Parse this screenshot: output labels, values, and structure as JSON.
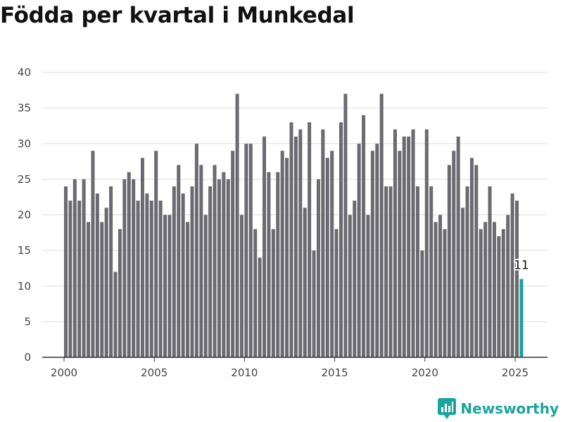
{
  "chart_data": {
    "type": "bar",
    "title": "Födda per kvartal i Munkedal",
    "xlabel": "",
    "ylabel": "",
    "ylim": [
      0,
      40
    ],
    "yticks": [
      0,
      5,
      10,
      15,
      20,
      25,
      30,
      35,
      40
    ],
    "xticks": [
      "2000",
      "2005",
      "2010",
      "2015",
      "2020",
      "2025"
    ],
    "grid": true,
    "bar_color": "#6b6a70",
    "highlight_color": "#17a39b",
    "highlight_label": "11",
    "first_year": 2000,
    "values": [
      24,
      22,
      25,
      22,
      25,
      19,
      29,
      23,
      19,
      21,
      24,
      12,
      18,
      25,
      26,
      25,
      22,
      28,
      23,
      22,
      29,
      22,
      20,
      20,
      24,
      27,
      23,
      19,
      24,
      30,
      27,
      20,
      24,
      27,
      25,
      26,
      25,
      29,
      37,
      20,
      30,
      30,
      18,
      14,
      31,
      26,
      18,
      26,
      29,
      28,
      33,
      31,
      32,
      21,
      33,
      15,
      25,
      32,
      28,
      29,
      18,
      33,
      37,
      20,
      22,
      30,
      34,
      20,
      29,
      30,
      37,
      24,
      24,
      32,
      29,
      31,
      31,
      32,
      24,
      15,
      32,
      24,
      19,
      20,
      18,
      27,
      29,
      31,
      21,
      24,
      28,
      27,
      18,
      19,
      24,
      19,
      17,
      18,
      20,
      23,
      22,
      11
    ]
  },
  "brand": {
    "name": "Newsworthy",
    "icon": "newsworthy-logo-icon"
  }
}
